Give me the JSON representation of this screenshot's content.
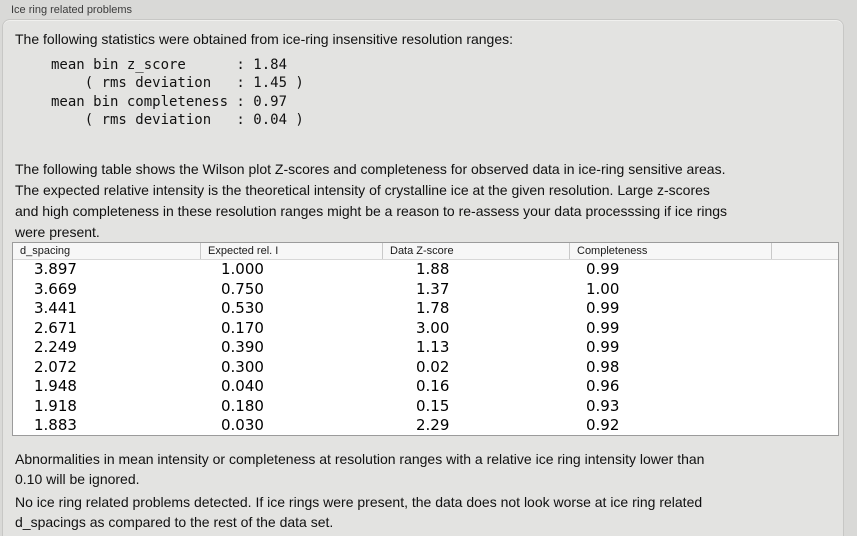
{
  "section_title": "Ice ring related problems",
  "intro": "The following statistics were obtained from ice-ring insensitive resolution ranges:",
  "stats_block": "mean bin z_score      : 1.84\n    ( rms deviation   : 1.45 )\nmean bin completeness : 0.97\n    ( rms deviation   : 0.04 )",
  "description": "The following table shows the Wilson plot Z-scores and completeness for observed data in ice-ring sensitive areas.\nThe expected relative intensity is the theoretical intensity of crystalline ice at the given resolution. Large z-scores\nand high completeness in these resolution ranges might be a reason to re-assess your data processsing if ice rings\nwere present.",
  "table": {
    "columns": [
      "d_spacing",
      "Expected rel. I",
      "Data Z-score",
      "Completeness"
    ],
    "rows": [
      [
        "3.897",
        "1.000",
        "1.88",
        "0.99"
      ],
      [
        "3.669",
        "0.750",
        "1.37",
        "1.00"
      ],
      [
        "3.441",
        "0.530",
        "1.78",
        "0.99"
      ],
      [
        "2.671",
        "0.170",
        "3.00",
        "0.99"
      ],
      [
        "2.249",
        "0.390",
        "1.13",
        "0.99"
      ],
      [
        "2.072",
        "0.300",
        "0.02",
        "0.98"
      ],
      [
        "1.948",
        "0.040",
        "0.16",
        "0.96"
      ],
      [
        "1.918",
        "0.180",
        "0.15",
        "0.93"
      ],
      [
        "1.883",
        "0.030",
        "2.29",
        "0.92"
      ]
    ]
  },
  "ignore_note": "Abnormalities in mean intensity or completeness at resolution ranges with a relative ice ring intensity lower than\n0.10 will be ignored.",
  "conclusion": "No ice ring related problems detected. If ice rings were present, the data does not look worse at ice ring related\nd_spacings as compared to the rest of the data set.",
  "colors": {
    "outer_bg": "#d9d9d7",
    "panel_bg": "#e3e3e1",
    "panel_border": "#c7c7c5",
    "title_text": "#3c3c3c",
    "body_text": "#111111",
    "table_bg": "#ffffff",
    "table_border": "#9b9b9b",
    "header_bg": "#f7f7f7",
    "header_border": "#c9c9c9",
    "header_text": "#1a1a1a"
  }
}
